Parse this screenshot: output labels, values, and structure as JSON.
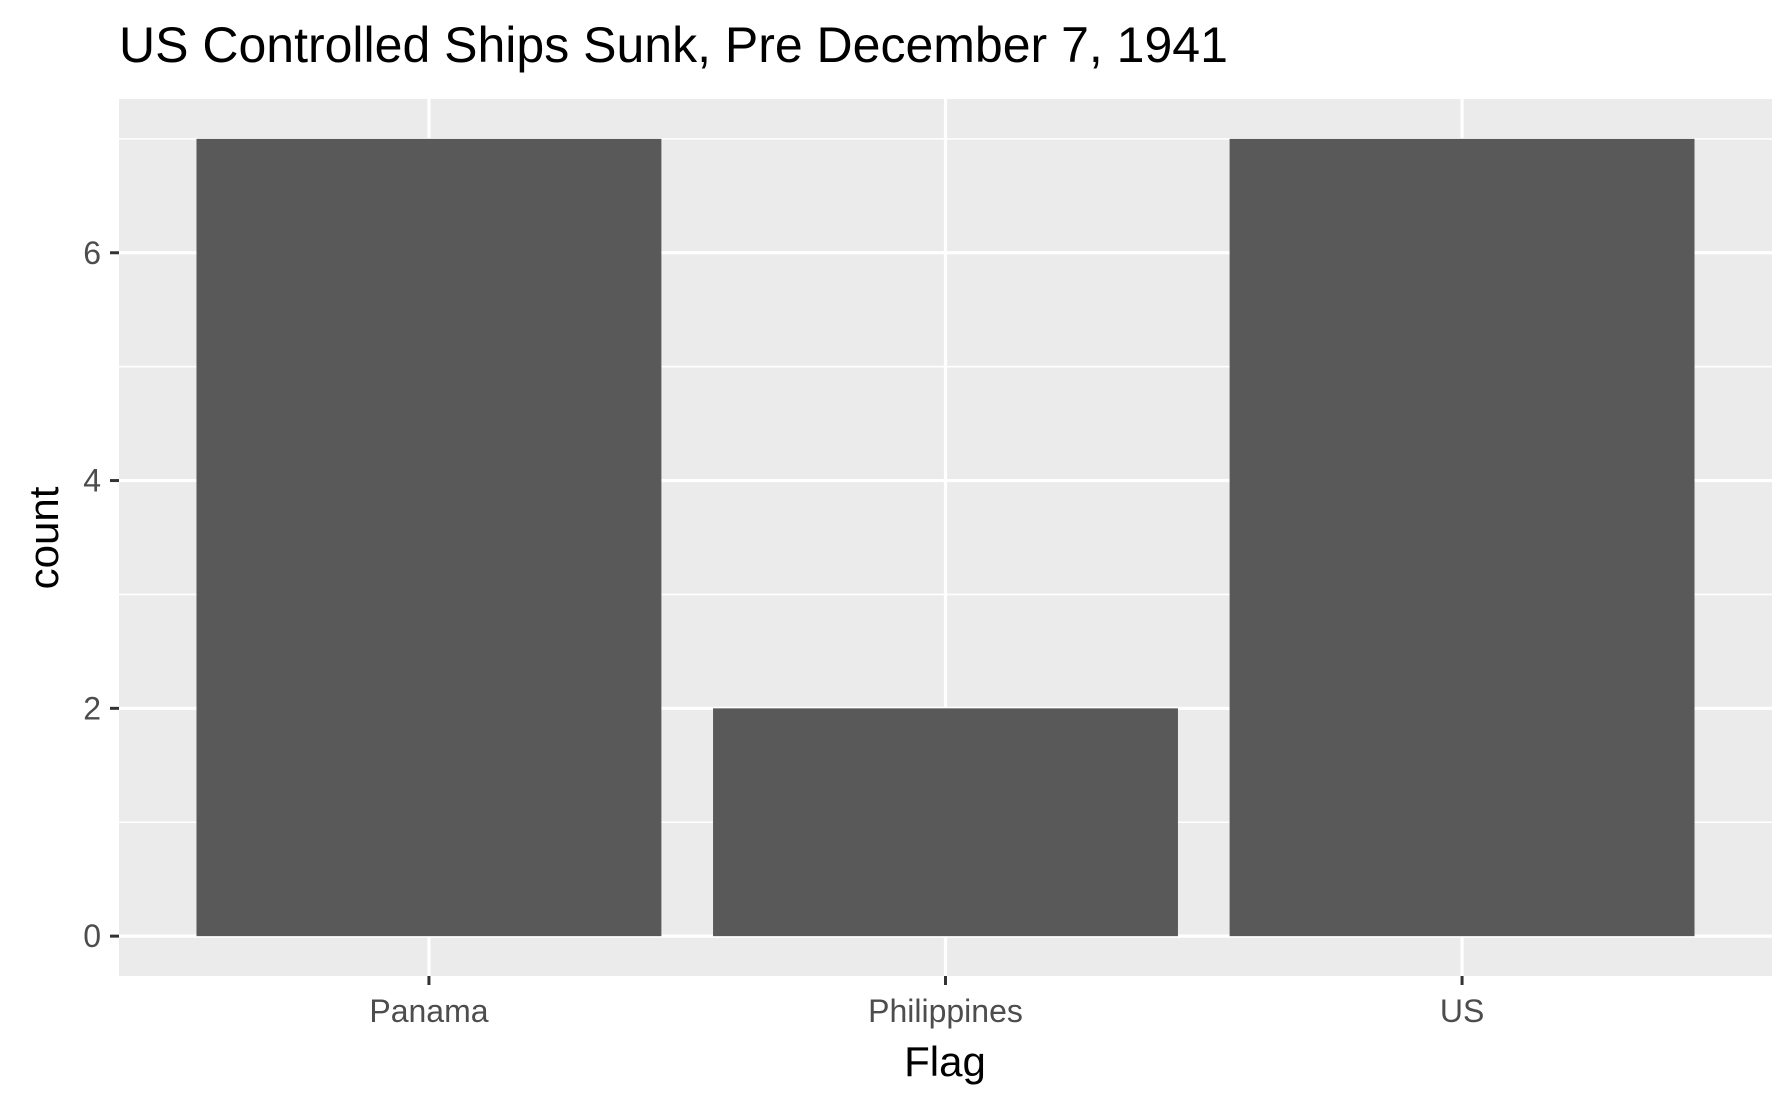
{
  "chart_data": {
    "type": "bar",
    "title": "US Controlled Ships Sunk, Pre December 7, 1941",
    "xlabel": "Flag",
    "ylabel": "count",
    "categories": [
      "Panama",
      "Philippines",
      "US"
    ],
    "values": [
      7,
      2,
      7
    ],
    "ylim": [
      -0.35,
      7.35
    ],
    "yticks": [
      0,
      2,
      4,
      6
    ],
    "ytick_labels": [
      "0",
      "2",
      "4",
      "6"
    ],
    "y_minor_ticks": [
      1,
      3,
      5,
      7
    ],
    "grid": true,
    "colors": {
      "bar": "#595959",
      "panel": "#ebebeb",
      "grid": "#ffffff",
      "tick": "#333333"
    }
  }
}
